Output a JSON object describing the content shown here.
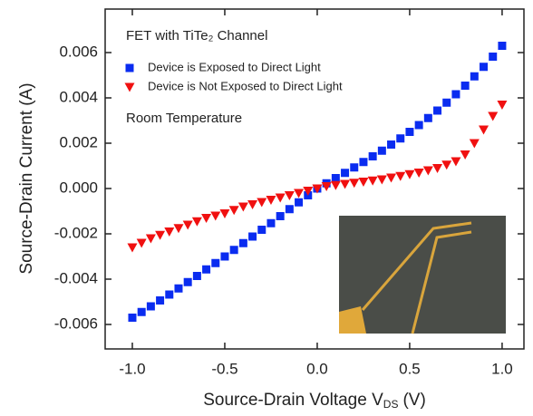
{
  "chart_data": {
    "type": "scatter",
    "annotations": [
      "FET with TiTe₂ Channel",
      "Room Temperature"
    ],
    "xlabel": {
      "main": "Source-Drain Voltage V",
      "sub": "DS",
      "unit": "(V)"
    },
    "ylabel": "Source-Drain Current (A)",
    "x": [
      -1.0,
      -0.95,
      -0.9,
      -0.85,
      -0.8,
      -0.75,
      -0.7,
      -0.65,
      -0.6,
      -0.55,
      -0.5,
      -0.45,
      -0.4,
      -0.35,
      -0.3,
      -0.25,
      -0.2,
      -0.15,
      -0.1,
      -0.05,
      0,
      0.05,
      0.1,
      0.15,
      0.2,
      0.25,
      0.3,
      0.35,
      0.4,
      0.45,
      0.5,
      0.55,
      0.6,
      0.65,
      0.7,
      0.75,
      0.8,
      0.85,
      0.9,
      0.95,
      1.0
    ],
    "series": [
      {
        "name": "Device is Exposed to Direct Light",
        "color": "#0a2cf0",
        "marker": "square",
        "values": [
          -0.0057,
          -0.00545,
          -0.0052,
          -0.00494,
          -0.00468,
          -0.00441,
          -0.00413,
          -0.00386,
          -0.00357,
          -0.00329,
          -0.003,
          -0.00271,
          -0.00241,
          -0.00212,
          -0.00182,
          -0.00153,
          -0.00122,
          -0.00091,
          -0.00061,
          -0.0003,
          0,
          0.00023,
          0.00046,
          0.00069,
          0.00093,
          0.00117,
          0.00142,
          0.00167,
          0.00194,
          0.00221,
          0.0025,
          0.0028,
          0.00311,
          0.00344,
          0.00379,
          0.00416,
          0.00454,
          0.00495,
          0.00537,
          0.00582,
          0.0063
        ]
      },
      {
        "name": "Device is Not Exposed to Direct Light",
        "color": "#f01010",
        "marker": "triangle-down",
        "values": [
          -0.0026,
          -0.0024,
          -0.0022,
          -0.00205,
          -0.0019,
          -0.00175,
          -0.0016,
          -0.00145,
          -0.0013,
          -0.0012,
          -0.0011,
          -0.00095,
          -0.0008,
          -0.0007,
          -0.0006,
          -0.0005,
          -0.0004,
          -0.0003,
          -0.0002,
          -0.0001,
          0,
          0.0001,
          0.00015,
          0.0002,
          0.00025,
          0.0003,
          0.00035,
          0.0004,
          0.00048,
          0.00055,
          0.00063,
          0.0007,
          0.0008,
          0.0009,
          0.00105,
          0.0012,
          0.0015,
          0.002,
          0.0026,
          0.0032,
          0.0037
        ]
      }
    ],
    "xlim": [
      -1.147,
      1.118
    ],
    "ylim": [
      -0.00708,
      0.00792
    ],
    "xticks": [
      {
        "value": -1,
        "label": "-1.0"
      },
      -0.5,
      {
        "value": 0,
        "label": "0.0"
      },
      0.5,
      {
        "value": 1,
        "label": "1.0"
      }
    ],
    "yticks": [
      -0.006,
      -0.004,
      -0.002,
      {
        "value": 0,
        "label": "0.000"
      },
      0.002,
      0.004,
      0.006
    ],
    "legend": "upper left"
  }
}
